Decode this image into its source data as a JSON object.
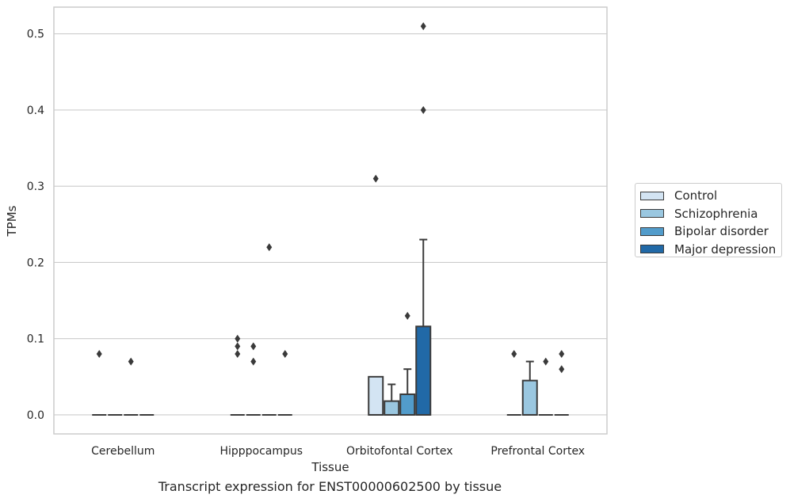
{
  "chart_data": {
    "type": "box",
    "title": "",
    "caption": "Transcript expression for ENST00000602500 by tissue",
    "xlabel": "Tissue",
    "ylabel": "TPMs",
    "ylim": [
      -0.025,
      0.535
    ],
    "yticks": [
      "0.0",
      "0.1",
      "0.2",
      "0.3",
      "0.4",
      "0.5"
    ],
    "ytick_values": [
      0.0,
      0.1,
      0.2,
      0.3,
      0.4,
      0.5
    ],
    "grid": true,
    "legend_position": "right",
    "categories": [
      "Cerebellum",
      "Hipppocampus",
      "Orbitofontal Cortex",
      "Prefrontal Cortex"
    ],
    "series": [
      {
        "name": "Control",
        "color": "#d3e4f3",
        "boxes": [
          {
            "q1": 0.0,
            "median": 0.0,
            "q3": 0.0,
            "whisker_high": 0.0,
            "outliers": [
              0.08
            ]
          },
          {
            "q1": 0.0,
            "median": 0.0,
            "q3": 0.0,
            "whisker_high": 0.0,
            "outliers": [
              0.08,
              0.09,
              0.1
            ]
          },
          {
            "q1": 0.0,
            "median": 0.0,
            "q3": 0.05,
            "whisker_high": 0.05,
            "outliers": [
              0.31
            ]
          },
          {
            "q1": 0.0,
            "median": 0.0,
            "q3": 0.0,
            "whisker_high": 0.0,
            "outliers": [
              0.08
            ]
          }
        ]
      },
      {
        "name": "Schizophrenia",
        "color": "#9ac7e0",
        "boxes": [
          {
            "q1": 0.0,
            "median": 0.0,
            "q3": 0.0,
            "whisker_high": 0.0,
            "outliers": []
          },
          {
            "q1": 0.0,
            "median": 0.0,
            "q3": 0.0,
            "whisker_high": 0.0,
            "outliers": [
              0.07,
              0.09
            ]
          },
          {
            "q1": 0.0,
            "median": 0.0,
            "q3": 0.018,
            "whisker_high": 0.04,
            "outliers": []
          },
          {
            "q1": 0.0,
            "median": 0.0,
            "q3": 0.045,
            "whisker_high": 0.07,
            "outliers": []
          }
        ]
      },
      {
        "name": "Bipolar disorder",
        "color": "#529ccb",
        "boxes": [
          {
            "q1": 0.0,
            "median": 0.0,
            "q3": 0.0,
            "whisker_high": 0.0,
            "outliers": [
              0.07
            ]
          },
          {
            "q1": 0.0,
            "median": 0.0,
            "q3": 0.0,
            "whisker_high": 0.0,
            "outliers": [
              0.22
            ]
          },
          {
            "q1": 0.0,
            "median": 0.0,
            "q3": 0.027,
            "whisker_high": 0.06,
            "outliers": [
              0.13
            ]
          },
          {
            "q1": 0.0,
            "median": 0.0,
            "q3": 0.0,
            "whisker_high": 0.0,
            "outliers": [
              0.07
            ]
          }
        ]
      },
      {
        "name": "Major depression",
        "color": "#2169a7",
        "boxes": [
          {
            "q1": 0.0,
            "median": 0.0,
            "q3": 0.0,
            "whisker_high": 0.0,
            "outliers": []
          },
          {
            "q1": 0.0,
            "median": 0.0,
            "q3": 0.0,
            "whisker_high": 0.0,
            "outliers": [
              0.08
            ]
          },
          {
            "q1": 0.0,
            "median": 0.0,
            "q3": 0.116,
            "whisker_high": 0.23,
            "outliers": [
              0.4,
              0.51
            ]
          },
          {
            "q1": 0.0,
            "median": 0.0,
            "q3": 0.0,
            "whisker_high": 0.0,
            "outliers": [
              0.06,
              0.08
            ]
          }
        ]
      }
    ]
  }
}
